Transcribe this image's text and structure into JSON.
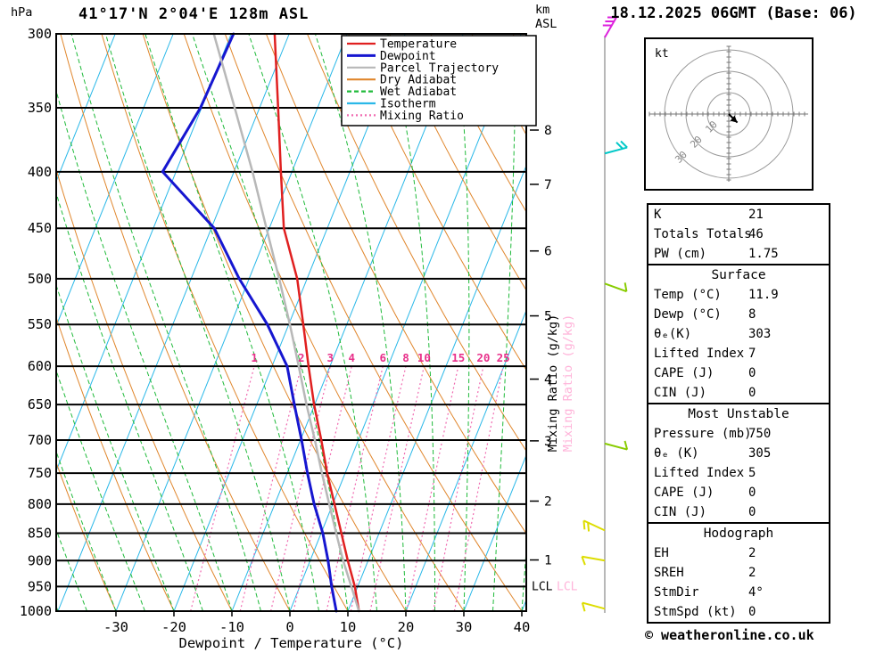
{
  "header": {
    "station_title": "41°17'N 2°04'E 128m ASL",
    "date_title": "18.12.2025 06GMT (Base: 06)",
    "left_axis_unit": "hPa",
    "right_axis_unit_line1": "km",
    "right_axis_unit_line2": "ASL"
  },
  "axes": {
    "xlabel": "Dewpoint / Temperature (°C)",
    "pressure_ticks": [
      300,
      350,
      400,
      450,
      500,
      550,
      600,
      650,
      700,
      750,
      800,
      850,
      900,
      950,
      1000
    ],
    "temp_ticks": [
      -30,
      -20,
      -10,
      0,
      10,
      20,
      30,
      40
    ],
    "km_ticks": [
      1,
      2,
      3,
      4,
      5,
      6,
      7,
      8
    ],
    "lcl_label": "LCL",
    "mixing_axis_label": "Mixing Ratio (g/kg)"
  },
  "colors": {
    "isotherm": "#2ab8e8",
    "dry_adiabat": "#e0862c",
    "wet_adiabat": "#1fba3a",
    "mixing": "#f06ab0",
    "mixing_label": "#e8308a",
    "pressure_line": "#000000",
    "pink_text": "#ffb3d9",
    "barb_line": "#888888"
  },
  "legend": [
    {
      "label": "Temperature",
      "color": "#e02020",
      "dash": ""
    },
    {
      "label": "Dewpoint",
      "color": "#1616d0",
      "dash": ""
    },
    {
      "label": "Parcel Trajectory",
      "color": "#b8b8b8",
      "dash": ""
    },
    {
      "label": "Dry Adiabat",
      "color": "#e0862c",
      "dash": ""
    },
    {
      "label": "Wet Adiabat",
      "color": "#1fba3a",
      "dash": "5,3"
    },
    {
      "label": "Isotherm",
      "color": "#2ab8e8",
      "dash": ""
    },
    {
      "label": "Mixing Ratio",
      "color": "#f06ab0",
      "dash": "2,3"
    }
  ],
  "chart_data": {
    "type": "line",
    "title": "Skew-T log-P sounding 41°17'N 2°04'E 128m ASL, 18.12.2025 06GMT",
    "x_axis": {
      "label": "Dewpoint / Temperature (°C)",
      "min": -40,
      "max": 40,
      "unit": "°C"
    },
    "y_axis": {
      "label": "hPa",
      "min": 300,
      "max": 1000,
      "scale": "log"
    },
    "skew": 0.4,
    "isotherms_c": [
      -110,
      -100,
      -90,
      -80,
      -70,
      -60,
      -50,
      -40,
      -30,
      -20,
      -10,
      0,
      10,
      20,
      30,
      40
    ],
    "dry_adiabats_c": [
      -40,
      -30,
      -20,
      -10,
      0,
      10,
      20,
      30,
      40,
      50,
      60,
      70,
      80,
      90,
      100,
      110,
      120,
      130
    ],
    "wet_adiabats_c": [
      -40,
      -35,
      -30,
      -25,
      -20,
      -15,
      -10,
      -5,
      0,
      5,
      10,
      15,
      20,
      25,
      30,
      35,
      40
    ],
    "mixing_ratio_lines": [
      1,
      2,
      3,
      4,
      6,
      8,
      10,
      15,
      20,
      25
    ],
    "lcl_pressure": 950,
    "series": [
      {
        "name": "Temperature",
        "color": "#e02020",
        "width": 2.5,
        "points": [
          [
            1000,
            11.9
          ],
          [
            950,
            9.5
          ],
          [
            900,
            6.5
          ],
          [
            850,
            3.5
          ],
          [
            800,
            0.3
          ],
          [
            750,
            -3.1
          ],
          [
            700,
            -6.4
          ],
          [
            650,
            -10.1
          ],
          [
            600,
            -13.7
          ],
          [
            550,
            -17.5
          ],
          [
            500,
            -21.7
          ],
          [
            450,
            -27.5
          ],
          [
            400,
            -31.9
          ],
          [
            350,
            -36.8
          ],
          [
            300,
            -42.5
          ]
        ]
      },
      {
        "name": "Dewpoint",
        "color": "#1616d0",
        "width": 3,
        "points": [
          [
            1000,
            8
          ],
          [
            950,
            5.5
          ],
          [
            900,
            3.1
          ],
          [
            850,
            0.3
          ],
          [
            800,
            -3.2
          ],
          [
            750,
            -6.5
          ],
          [
            700,
            -9.8
          ],
          [
            650,
            -13.5
          ],
          [
            600,
            -17.4
          ],
          [
            550,
            -23.7
          ],
          [
            500,
            -31.7
          ],
          [
            450,
            -39.5
          ],
          [
            400,
            -52.3
          ],
          [
            350,
            -50.2
          ],
          [
            300,
            -49.6
          ]
        ]
      },
      {
        "name": "Parcel Trajectory",
        "color": "#b8b8b8",
        "width": 2.5,
        "points": [
          [
            1000,
            11.9
          ],
          [
            950,
            8.9
          ],
          [
            900,
            5.7
          ],
          [
            850,
            2.6
          ],
          [
            800,
            -0.6
          ],
          [
            750,
            -4.0
          ],
          [
            700,
            -7.5
          ],
          [
            650,
            -11.4
          ],
          [
            600,
            -15.4
          ],
          [
            550,
            -19.8
          ],
          [
            500,
            -24.8
          ],
          [
            450,
            -30.5
          ],
          [
            400,
            -36.8
          ],
          [
            350,
            -44.3
          ],
          [
            300,
            -53.0
          ]
        ]
      }
    ],
    "wind_barbs": [
      {
        "pressure": 300,
        "color": "#dd22dd",
        "dir_deg": -60,
        "ticks": 3
      },
      {
        "pressure": 385,
        "color": "#00c8c8",
        "dir_deg": -15,
        "ticks": 2
      },
      {
        "pressure": 505,
        "color": "#88cc00",
        "dir_deg": 20,
        "ticks": 1
      },
      {
        "pressure": 705,
        "color": "#88cc00",
        "dir_deg": 15,
        "ticks": 1
      },
      {
        "pressure": 845,
        "color": "#dddd00",
        "dir_deg": 205,
        "ticks": 2
      },
      {
        "pressure": 900,
        "color": "#dddd00",
        "dir_deg": 190,
        "ticks": 1
      },
      {
        "pressure": 995,
        "color": "#dddd00",
        "dir_deg": 195,
        "ticks": 1
      }
    ]
  },
  "hodograph": {
    "unit_label": "kt",
    "rings_kt": [
      10,
      20,
      30
    ],
    "ring_labels": [
      "10",
      "20",
      "30"
    ],
    "trace_kt": [
      [
        0,
        0
      ],
      [
        4,
        -4
      ]
    ]
  },
  "tables": [
    {
      "header": null,
      "rows": [
        [
          "K",
          "21"
        ],
        [
          "Totals Totals",
          "46"
        ],
        [
          "PW (cm)",
          "1.75"
        ]
      ]
    },
    {
      "header": "Surface",
      "rows": [
        [
          "Temp (°C)",
          "11.9"
        ],
        [
          "Dewp (°C)",
          "8"
        ],
        [
          "θₑ(K)",
          "303"
        ],
        [
          "Lifted Index",
          "7"
        ],
        [
          "CAPE (J)",
          "0"
        ],
        [
          "CIN (J)",
          "0"
        ]
      ]
    },
    {
      "header": "Most Unstable",
      "rows": [
        [
          "Pressure (mb)",
          "750"
        ],
        [
          "θₑ (K)",
          "305"
        ],
        [
          "Lifted Index",
          "5"
        ],
        [
          "CAPE (J)",
          "0"
        ],
        [
          "CIN (J)",
          "0"
        ]
      ]
    },
    {
      "header": "Hodograph",
      "rows": [
        [
          "EH",
          "2"
        ],
        [
          "SREH",
          "2"
        ],
        [
          "StmDir",
          "4°"
        ],
        [
          "StmSpd (kt)",
          "0"
        ]
      ]
    }
  ],
  "footer": {
    "copyright": "© weatheronline.co.uk"
  }
}
